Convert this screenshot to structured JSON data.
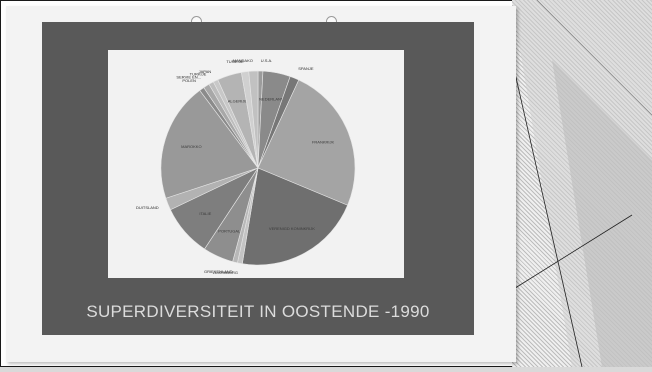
{
  "slide": {
    "title": "SUPERDIVERSITEIT IN OOSTENDE -1990"
  },
  "colors": {
    "dark_slide": "#595959",
    "chart_bg": "#f2f2f2",
    "title_text": "#dcdcdc"
  },
  "chart_data": {
    "type": "pie",
    "title": "",
    "slices": [
      {
        "label": "U.S.A.",
        "value": 0.8
      },
      {
        "label": "NEDERLAND",
        "value": 4.5
      },
      {
        "label": "SPANJE",
        "value": 1.5
      },
      {
        "label": "FRANKRIJK",
        "value": 24.0
      },
      {
        "label": "VERENIGD KONINKRIJK",
        "value": 21.0
      },
      {
        "label": "LUXEMBURG",
        "value": 0.8
      },
      {
        "label": "GRIEKENLAND",
        "value": 0.8
      },
      {
        "label": "PORTUGAL",
        "value": 5.0
      },
      {
        "label": "ITALIE",
        "value": 8.5
      },
      {
        "label": "DUITSLAND",
        "value": 2.0
      },
      {
        "label": "MAROKKO",
        "value": 19.5
      },
      {
        "label": "POLEN",
        "value": 0.8
      },
      {
        "label": "SERVIE EN...",
        "value": 1.0
      },
      {
        "label": "TURKIJE",
        "value": 0.8
      },
      {
        "label": "JAPAN",
        "value": 0.8
      },
      {
        "label": "ALGERIJE",
        "value": 4.0
      },
      {
        "label": "TUNESIE",
        "value": 1.2
      },
      {
        "label": "MANDAKO",
        "value": 1.5
      }
    ]
  }
}
